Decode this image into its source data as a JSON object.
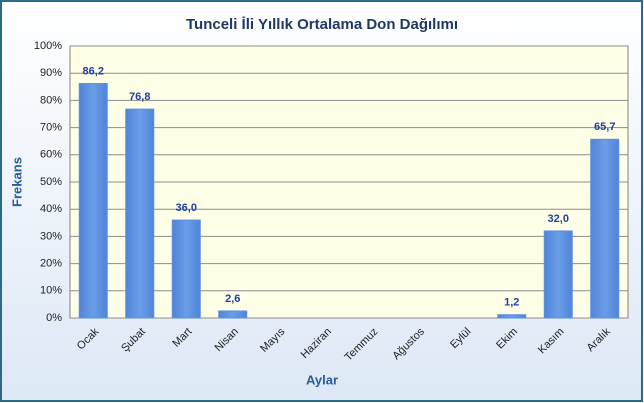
{
  "chart_data": {
    "type": "bar",
    "title": "Tunceli İli Yıllık Ortalama Don Dağılımı",
    "x_label": "Aylar",
    "y_label": "Frekans",
    "categories": [
      "Ocak",
      "Şubat",
      "Mart",
      "Nisan",
      "Mayıs",
      "Haziran",
      "Temmuz",
      "Ağustos",
      "Eylül",
      "Ekim",
      "Kasım",
      "Aralık"
    ],
    "values": [
      86.2,
      76.8,
      36.0,
      2.6,
      null,
      null,
      null,
      null,
      null,
      1.2,
      32.0,
      65.7
    ],
    "value_labels": [
      "86,2",
      "76,8",
      "36,0",
      "2,6",
      null,
      null,
      null,
      null,
      null,
      "1,2",
      "32,0",
      "65,7"
    ],
    "color": "#5a8fe0",
    "ylim": [
      0,
      100
    ],
    "yticks": [
      {
        "value": 0,
        "label": "0%"
      },
      {
        "value": 10,
        "label": "10%"
      },
      {
        "value": 20,
        "label": "20%"
      },
      {
        "value": 30,
        "label": "30%"
      },
      {
        "value": 40,
        "label": "40%"
      },
      {
        "value": 50,
        "label": "50%"
      },
      {
        "value": 60,
        "label": "60%"
      },
      {
        "value": 70,
        "label": "70%"
      },
      {
        "value": 80,
        "label": "80%"
      },
      {
        "value": 90,
        "label": "90%"
      },
      {
        "value": 100,
        "label": "100%"
      }
    ],
    "grid": true
  }
}
